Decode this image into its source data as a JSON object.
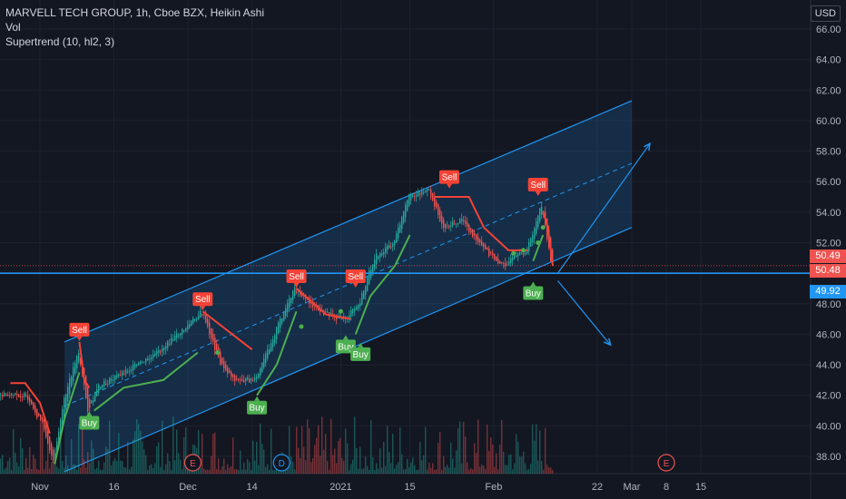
{
  "header": {
    "line1": "MARVELL TECH GROUP, 1h, Cboe BZX, Heikin Ashi",
    "line2": "Vol",
    "line3": "Supertrend (10, hl2, 3)"
  },
  "currency_label": "USD",
  "price_tags": [
    {
      "value": "50.49",
      "color": "#ef5350"
    },
    {
      "value": "50.48",
      "color": "#ef5350"
    },
    {
      "value": "49.92",
      "color": "#2196f3"
    }
  ],
  "colors": {
    "background": "#131722",
    "grid": "#1e2230",
    "axis_text": "#b2b5be",
    "up": "#26a69a",
    "down": "#ef5350",
    "supertrend_up": "#4caf50",
    "supertrend_down": "#f44336",
    "channel": "#2196f3",
    "horizontal_line": "#2196f3"
  },
  "chart_data": {
    "type": "candlestick",
    "ylim": [
      37,
      67
    ],
    "y_ticks": [
      "66.00",
      "64.00",
      "62.00",
      "60.00",
      "58.00",
      "56.00",
      "54.00",
      "52.00",
      "50.00",
      "48.00",
      "46.00",
      "44.00",
      "42.00",
      "40.00",
      "38.00"
    ],
    "x_ticks": [
      "Nov",
      "16",
      "Dec",
      "14",
      "2021",
      "15",
      "Feb",
      "22",
      "Mar",
      "8",
      "15"
    ],
    "grid": true,
    "horizontal_line": 50.0,
    "price_path": [
      {
        "t": "Oct 29",
        "p": 42.0
      },
      {
        "t": "Nov 2",
        "p": 40.0
      },
      {
        "t": "Nov 4",
        "p": 37.5
      },
      {
        "t": "Nov 6",
        "p": 41.5
      },
      {
        "t": "Nov 9",
        "p": 45.0
      },
      {
        "t": "Nov 11",
        "p": 41.0
      },
      {
        "t": "Nov 13",
        "p": 42.5
      },
      {
        "t": "Nov 18",
        "p": 43.5
      },
      {
        "t": "Nov 24",
        "p": 44.5
      },
      {
        "t": "Dec 1",
        "p": 46.5
      },
      {
        "t": "Dec 4",
        "p": 47.5
      },
      {
        "t": "Dec 8",
        "p": 44.0
      },
      {
        "t": "Dec 11",
        "p": 43.0
      },
      {
        "t": "Dec 15",
        "p": 43.0
      },
      {
        "t": "Dec 20",
        "p": 47.0
      },
      {
        "t": "Dec 23",
        "p": 49.0
      },
      {
        "t": "Dec 28",
        "p": 47.5
      },
      {
        "t": "Jan 2",
        "p": 47.0
      },
      {
        "t": "Jan 5",
        "p": 48.0
      },
      {
        "t": "Jan 8",
        "p": 51.0
      },
      {
        "t": "Jan 12",
        "p": 52.0
      },
      {
        "t": "Jan 15",
        "p": 55.0
      },
      {
        "t": "Jan 19",
        "p": 55.5
      },
      {
        "t": "Jan 22",
        "p": 53.0
      },
      {
        "t": "Jan 26",
        "p": 53.5
      },
      {
        "t": "Jan 29",
        "p": 52.0
      },
      {
        "t": "Feb 3",
        "p": 50.5
      },
      {
        "t": "Feb 8",
        "p": 51.5
      },
      {
        "t": "Feb 11",
        "p": 54.5
      },
      {
        "t": "Feb 13",
        "p": 50.5
      }
    ],
    "supertrend": {
      "segments": [
        {
          "trend": "down",
          "points": [
            [
              "Oct 26",
              42.8
            ],
            [
              "Oct 29",
              42.8
            ],
            [
              "Nov 1",
              41.5
            ],
            [
              "Nov 3",
              39.5
            ]
          ]
        },
        {
          "trend": "up",
          "points": [
            [
              "Nov 4",
              37.5
            ],
            [
              "Nov 6",
              40.5
            ],
            [
              "Nov 9",
              43.5
            ]
          ]
        },
        {
          "trend": "down",
          "points": [
            [
              "Nov 9",
              45.5
            ],
            [
              "Nov 10",
              43.0
            ],
            [
              "Nov 11",
              42.5
            ]
          ]
        },
        {
          "trend": "up",
          "points": [
            [
              "Nov 12",
              41.0
            ],
            [
              "Nov 18",
              42.5
            ],
            [
              "Nov 26",
              43.0
            ],
            [
              "Dec 3",
              44.8
            ]
          ]
        },
        {
          "trend": "down",
          "points": [
            [
              "Dec 4",
              47.5
            ],
            [
              "Dec 8",
              46.5
            ],
            [
              "Dec 12",
              45.5
            ],
            [
              "Dec 14",
              45.0
            ]
          ]
        },
        {
          "trend": "up",
          "points": [
            [
              "Dec 15",
              42.0
            ],
            [
              "Dec 19",
              44.0
            ],
            [
              "Dec 23",
              47.5
            ]
          ]
        },
        {
          "trend": "down",
          "points": [
            [
              "Dec 23",
              49.0
            ],
            [
              "Dec 29",
              47.3
            ],
            [
              "Jan 3",
              47.0
            ]
          ]
        },
        {
          "trend": "up",
          "points": [
            [
              "Jan 4",
              46.0
            ],
            [
              "Jan 7",
              48.5
            ],
            [
              "Jan 12",
              50.5
            ],
            [
              "Jan 15",
              52.5
            ]
          ]
        },
        {
          "trend": "down",
          "points": [
            [
              "Jan 20",
              55.0
            ],
            [
              "Jan 27",
              55.0
            ],
            [
              "Jan 30",
              53.0
            ],
            [
              "Feb 4",
              51.5
            ],
            [
              "Feb 8",
              51.5
            ]
          ]
        },
        {
          "trend": "up",
          "points": [
            [
              "Feb 9",
              50.8
            ],
            [
              "Feb 11",
              52.5
            ]
          ]
        },
        {
          "trend": "down",
          "points": [
            [
              "Feb 11",
              54.0
            ],
            [
              "Feb 12",
              53.0
            ],
            [
              "Feb 13",
              50.5
            ]
          ]
        }
      ]
    },
    "signals": [
      {
        "label": "Sell",
        "t": "Nov 9",
        "price": 45.5,
        "type": "sell"
      },
      {
        "label": "Buy",
        "t": "Nov 11",
        "price": 41.0,
        "type": "buy"
      },
      {
        "label": "Sell",
        "t": "Dec 4",
        "price": 47.5,
        "type": "sell"
      },
      {
        "label": "Buy",
        "t": "Dec 15",
        "price": 42.0,
        "type": "buy"
      },
      {
        "label": "Sell",
        "t": "Dec 23",
        "price": 49.0,
        "type": "sell"
      },
      {
        "label": "Buy",
        "t": "Jan 2",
        "price": 46.0,
        "type": "buy"
      },
      {
        "label": "Sell",
        "t": "Jan 4",
        "price": 49.0,
        "type": "sell"
      },
      {
        "label": "Buy",
        "t": "Jan 5",
        "price": 45.5,
        "type": "buy"
      },
      {
        "label": "Sell",
        "t": "Jan 23",
        "price": 55.5,
        "type": "sell"
      },
      {
        "label": "Sell",
        "t": "Feb 10",
        "price": 55.0,
        "type": "sell"
      },
      {
        "label": "Buy",
        "t": "Feb 9",
        "price": 49.5,
        "type": "buy"
      }
    ],
    "channel": {
      "upper": [
        [
          "Nov 6",
          45.5
        ],
        [
          "Mar 1",
          61.3
        ]
      ],
      "lower": [
        [
          "Nov 6",
          37.0
        ],
        [
          "Mar 1",
          53.0
        ]
      ],
      "mid": [
        [
          "Nov 6",
          41.3
        ],
        [
          "Mar 1",
          57.2
        ]
      ]
    },
    "arrows": [
      {
        "from": [
          "Feb 14",
          50.0
        ],
        "to": [
          "Mar 1",
          58.5
        ]
      },
      {
        "from": [
          "Feb 14",
          49.5
        ],
        "to": [
          "Feb 21",
          45.3
        ]
      }
    ],
    "event_markers": [
      {
        "label": "E",
        "t": "Dec 2"
      },
      {
        "label": "D",
        "t": "Dec 20"
      },
      {
        "label": "E",
        "t": "Mar 8"
      }
    ]
  }
}
